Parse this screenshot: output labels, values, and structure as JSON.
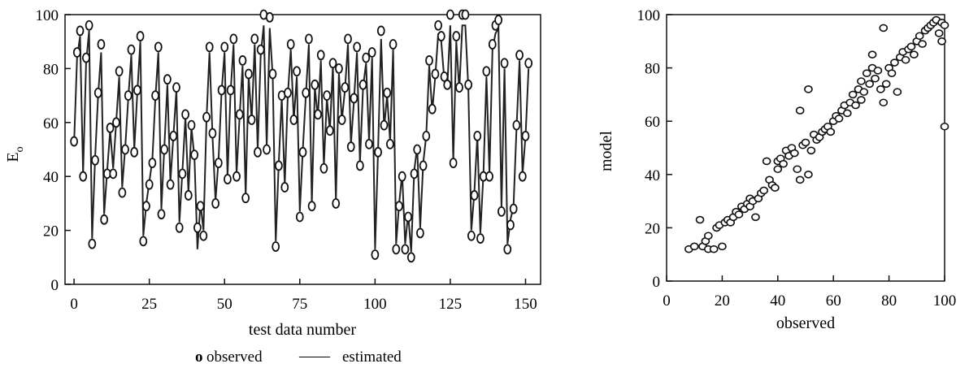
{
  "chart_data": [
    {
      "type": "line",
      "xlabel": "test data number",
      "ylabel": "E",
      "ylabel_subscript": "o",
      "xlim": [
        -3,
        155
      ],
      "ylim": [
        0,
        100
      ],
      "xticks": [
        0,
        25,
        50,
        75,
        100,
        125,
        150
      ],
      "yticks": [
        0,
        20,
        40,
        60,
        80,
        100
      ],
      "legend": {
        "placement": "bottom-center",
        "marker_label": "o",
        "observed_label": "observed",
        "line_sample": "——",
        "estimated_label": "estimated"
      },
      "grid": false,
      "series": [
        {
          "name": "observed",
          "marker": "circle",
          "x": [
            0,
            1,
            2,
            3,
            4,
            5,
            6,
            7,
            8,
            9,
            10,
            11,
            12,
            13,
            14,
            15,
            16,
            17,
            18,
            19,
            20,
            21,
            22,
            23,
            24,
            25,
            26,
            27,
            28,
            29,
            30,
            31,
            32,
            33,
            34,
            35,
            36,
            37,
            38,
            39,
            40,
            41,
            42,
            43,
            44,
            45,
            46,
            47,
            48,
            49,
            50,
            51,
            52,
            53,
            54,
            55,
            56,
            57,
            58,
            59,
            60,
            61,
            62,
            63,
            64,
            65,
            66,
            67,
            68,
            69,
            70,
            71,
            72,
            73,
            74,
            75,
            76,
            77,
            78,
            79,
            80,
            81,
            82,
            83,
            84,
            85,
            86,
            87,
            88,
            89,
            90,
            91,
            92,
            93,
            94,
            95,
            96,
            97,
            98,
            99,
            100,
            101,
            102,
            103,
            104,
            105,
            106,
            107,
            108,
            109,
            110,
            111,
            112,
            113,
            114,
            115,
            116,
            117,
            118,
            119,
            120,
            121,
            122,
            123,
            124,
            125,
            126,
            127,
            128,
            129,
            130,
            131,
            132,
            133,
            134,
            135,
            136,
            137,
            138,
            139,
            140,
            141,
            142,
            143,
            144,
            145,
            146,
            147,
            148,
            149,
            150,
            151
          ],
          "values": [
            53,
            86,
            94,
            40,
            84,
            96,
            15,
            46,
            71,
            89,
            24,
            41,
            58,
            41,
            60,
            79,
            34,
            50,
            70,
            87,
            49,
            72,
            92,
            16,
            29,
            37,
            45,
            70,
            88,
            26,
            50,
            76,
            37,
            55,
            73,
            21,
            41,
            63,
            33,
            59,
            48,
            21,
            29,
            18,
            62,
            88,
            56,
            30,
            45,
            72,
            88,
            39,
            72,
            91,
            40,
            63,
            83,
            32,
            78,
            61,
            91,
            49,
            87,
            100,
            50,
            99,
            78,
            14,
            44,
            70,
            36,
            71,
            89,
            61,
            79,
            25,
            49,
            71,
            91,
            29,
            74,
            63,
            85,
            43,
            70,
            57,
            82,
            30,
            80,
            61,
            73,
            91,
            51,
            69,
            88,
            44,
            74,
            84,
            52,
            86,
            11,
            49,
            94,
            59,
            71,
            52,
            89,
            13,
            29,
            40,
            13,
            25,
            10,
            41,
            50,
            19,
            44,
            55,
            83,
            65,
            78,
            96,
            92,
            77,
            74,
            100,
            45,
            92,
            73,
            100,
            100,
            74,
            18,
            33,
            55,
            17,
            40,
            79,
            40,
            89,
            96,
            98,
            27,
            82,
            13,
            22,
            28,
            59,
            85,
            40,
            55,
            82
          ]
        },
        {
          "name": "estimated",
          "marker": "line",
          "x": [
            0,
            1,
            2,
            3,
            4,
            5,
            6,
            7,
            8,
            9,
            10,
            11,
            12,
            13,
            14,
            15,
            16,
            17,
            18,
            19,
            20,
            21,
            22,
            23,
            24,
            25,
            26,
            27,
            28,
            29,
            30,
            31,
            32,
            33,
            34,
            35,
            36,
            37,
            38,
            39,
            40,
            41,
            42,
            43,
            44,
            45,
            46,
            47,
            48,
            49,
            50,
            51,
            52,
            53,
            54,
            55,
            56,
            57,
            58,
            59,
            60,
            61,
            62,
            63,
            64,
            65,
            66,
            67,
            68,
            69,
            70,
            71,
            72,
            73,
            74,
            75,
            76,
            77,
            78,
            79,
            80,
            81,
            82,
            83,
            84,
            85,
            86,
            87,
            88,
            89,
            90,
            91,
            92,
            93,
            94,
            95,
            96,
            97,
            98,
            99,
            100,
            101,
            102,
            103,
            104,
            105,
            106,
            107,
            108,
            109,
            110,
            111,
            112,
            113,
            114,
            115,
            116,
            117,
            118,
            119,
            120,
            121,
            122,
            123,
            124,
            125,
            126,
            127,
            128,
            129,
            130,
            131,
            132,
            133,
            134,
            135,
            136,
            137,
            138,
            139,
            140,
            141,
            142,
            143,
            144,
            145,
            146,
            147,
            148,
            149,
            150,
            151
          ],
          "values": [
            52,
            84,
            92,
            41,
            82,
            94,
            17,
            47,
            70,
            86,
            26,
            42,
            57,
            43,
            60,
            77,
            36,
            51,
            69,
            85,
            50,
            71,
            90,
            18,
            30,
            38,
            46,
            69,
            86,
            28,
            51,
            74,
            38,
            55,
            72,
            23,
            42,
            62,
            34,
            58,
            47,
            13,
            30,
            20,
            61,
            86,
            55,
            31,
            46,
            71,
            86,
            40,
            71,
            89,
            41,
            62,
            81,
            33,
            77,
            61,
            89,
            50,
            85,
            96,
            51,
            95,
            77,
            16,
            45,
            69,
            37,
            70,
            87,
            61,
            77,
            27,
            50,
            70,
            89,
            30,
            73,
            62,
            83,
            44,
            69,
            57,
            81,
            31,
            78,
            61,
            72,
            89,
            52,
            68,
            86,
            45,
            73,
            82,
            53,
            84,
            13,
            50,
            91,
            58,
            70,
            53,
            87,
            15,
            30,
            41,
            15,
            26,
            12,
            42,
            51,
            21,
            45,
            55,
            81,
            64,
            77,
            93,
            90,
            76,
            73,
            96,
            46,
            90,
            72,
            96,
            96,
            73,
            20,
            34,
            55,
            19,
            41,
            77,
            41,
            87,
            93,
            95,
            28,
            80,
            15,
            24,
            29,
            58,
            83,
            41,
            55,
            80
          ]
        }
      ]
    },
    {
      "type": "scatter",
      "xlabel": "observed",
      "ylabel": "model",
      "xlim": [
        0,
        100
      ],
      "ylim": [
        0,
        100
      ],
      "xticks": [
        0,
        20,
        40,
        60,
        80,
        100
      ],
      "yticks": [
        0,
        20,
        40,
        60,
        80,
        100
      ],
      "grid": false,
      "points": [
        [
          8,
          12
        ],
        [
          10,
          13
        ],
        [
          12,
          23
        ],
        [
          13,
          13
        ],
        [
          14,
          15
        ],
        [
          15,
          12
        ],
        [
          15,
          17
        ],
        [
          17,
          12
        ],
        [
          18,
          20
        ],
        [
          19,
          21
        ],
        [
          20,
          13
        ],
        [
          21,
          22
        ],
        [
          22,
          23
        ],
        [
          23,
          22
        ],
        [
          24,
          24
        ],
        [
          25,
          26
        ],
        [
          26,
          25
        ],
        [
          27,
          28
        ],
        [
          28,
          27
        ],
        [
          29,
          29
        ],
        [
          30,
          28
        ],
        [
          30,
          31
        ],
        [
          31,
          30
        ],
        [
          32,
          24
        ],
        [
          33,
          31
        ],
        [
          34,
          33
        ],
        [
          35,
          34
        ],
        [
          36,
          45
        ],
        [
          37,
          38
        ],
        [
          38,
          36
        ],
        [
          39,
          35
        ],
        [
          40,
          42
        ],
        [
          40,
          45
        ],
        [
          41,
          46
        ],
        [
          42,
          44
        ],
        [
          43,
          49
        ],
        [
          44,
          47
        ],
        [
          45,
          50
        ],
        [
          46,
          48
        ],
        [
          47,
          42
        ],
        [
          48,
          64
        ],
        [
          48,
          38
        ],
        [
          49,
          51
        ],
        [
          50,
          52
        ],
        [
          51,
          72
        ],
        [
          51,
          40
        ],
        [
          52,
          49
        ],
        [
          53,
          55
        ],
        [
          54,
          53
        ],
        [
          55,
          54
        ],
        [
          56,
          56
        ],
        [
          57,
          57
        ],
        [
          58,
          58
        ],
        [
          59,
          56
        ],
        [
          60,
          60
        ],
        [
          61,
          62
        ],
        [
          62,
          61
        ],
        [
          63,
          64
        ],
        [
          64,
          66
        ],
        [
          65,
          63
        ],
        [
          66,
          67
        ],
        [
          67,
          70
        ],
        [
          68,
          66
        ],
        [
          69,
          72
        ],
        [
          70,
          68
        ],
        [
          70,
          75
        ],
        [
          71,
          71
        ],
        [
          72,
          78
        ],
        [
          73,
          74
        ],
        [
          74,
          80
        ],
        [
          74,
          85
        ],
        [
          75,
          76
        ],
        [
          76,
          79
        ],
        [
          77,
          72
        ],
        [
          78,
          95
        ],
        [
          78,
          67
        ],
        [
          79,
          74
        ],
        [
          80,
          80
        ],
        [
          81,
          78
        ],
        [
          82,
          82
        ],
        [
          83,
          71
        ],
        [
          84,
          84
        ],
        [
          85,
          86
        ],
        [
          86,
          83
        ],
        [
          87,
          87
        ],
        [
          88,
          88
        ],
        [
          89,
          85
        ],
        [
          90,
          90
        ],
        [
          91,
          92
        ],
        [
          92,
          89
        ],
        [
          93,
          94
        ],
        [
          94,
          95
        ],
        [
          95,
          96
        ],
        [
          96,
          97
        ],
        [
          97,
          98
        ],
        [
          98,
          93
        ],
        [
          99,
          97
        ],
        [
          99,
          90
        ],
        [
          100,
          58
        ],
        [
          100,
          96
        ]
      ]
    }
  ]
}
